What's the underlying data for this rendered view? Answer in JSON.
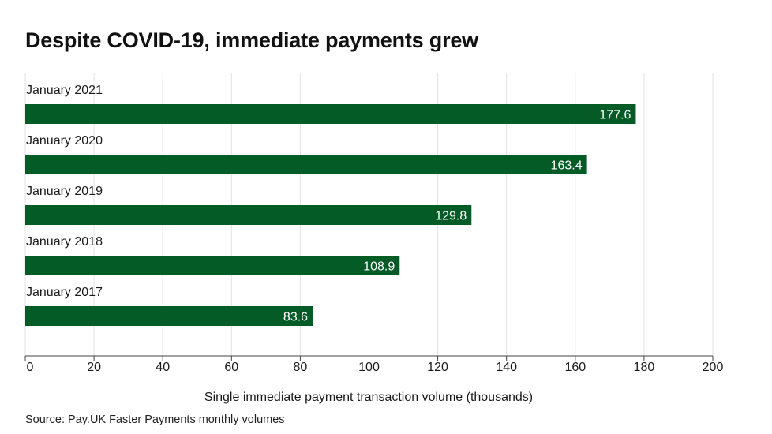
{
  "title": "Despite COVID-19, immediate payments grew",
  "source": "Source: Pay.UK Faster Payments monthly volumes",
  "colors": {
    "bar": "#045b25",
    "grid": "#e3e3e3",
    "axis": "#444444",
    "bar_label": "#ffffff"
  },
  "chart_data": {
    "type": "bar",
    "orientation": "horizontal",
    "title": "Despite COVID-19, immediate payments grew",
    "xlabel": "Single immediate payment transaction volume (thousands)",
    "ylabel": "",
    "categories": [
      "January 2021",
      "January 2020",
      "January 2019",
      "January 2018",
      "January 2017"
    ],
    "values": [
      177.6,
      163.4,
      129.8,
      108.9,
      83.6
    ],
    "value_labels": [
      "177.6",
      "163.4",
      "129.8",
      "108.9",
      "83.6"
    ],
    "xlim": [
      0,
      200
    ],
    "xticks": [
      0,
      20,
      40,
      60,
      80,
      100,
      120,
      140,
      160,
      180,
      200
    ],
    "grid": true,
    "legend": "none"
  }
}
